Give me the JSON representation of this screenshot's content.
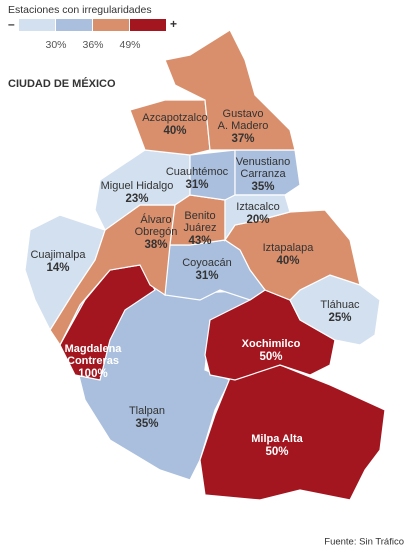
{
  "legend": {
    "title": "Estaciones con irregularidades",
    "low": "–",
    "high": "+",
    "colors": [
      "#d3e0ef",
      "#a9bfdd",
      "#d98f6c",
      "#a3161f"
    ],
    "thresholds": [
      "30%",
      "36%",
      "49%"
    ]
  },
  "title": "CIUDAD DE MÉXICO",
  "districts": [
    {
      "name_lines": [
        "Tlalpan"
      ],
      "value": "35%",
      "color": "#a9bfdd"
    },
    {
      "name_lines": [
        "Milpa Alta"
      ],
      "value": "50%",
      "color": "#a3161f"
    },
    {
      "name_lines": [
        "Xochimilco"
      ],
      "value": "50%",
      "color": "#a3161f"
    },
    {
      "name_lines": [
        "Tláhuac"
      ],
      "value": "25%",
      "color": "#d3e0ef"
    },
    {
      "name_lines": [
        "Iztapalapa"
      ],
      "value": "40%",
      "color": "#d98f6c"
    },
    {
      "name_lines": [
        "Coyoacán"
      ],
      "value": "31%",
      "color": "#a9bfdd"
    },
    {
      "name_lines": [
        "Magdalena",
        "Contreras"
      ],
      "value": "100%",
      "color": "#a3161f"
    },
    {
      "name_lines": [
        "Álvaro",
        "Obregón"
      ],
      "value": "38%",
      "color": "#d98f6c"
    },
    {
      "name_lines": [
        "Cuajimalpa"
      ],
      "value": "14%",
      "color": "#d3e0ef"
    },
    {
      "name_lines": [
        "Miguel Hidalgo"
      ],
      "value": "23%",
      "color": "#d3e0ef"
    },
    {
      "name_lines": [
        "Benito",
        "Juárez"
      ],
      "value": "43%",
      "color": "#d98f6c"
    },
    {
      "name_lines": [
        "Cuauhtémoc"
      ],
      "value": "31%",
      "color": "#a9bfdd"
    },
    {
      "name_lines": [
        "Venustiano",
        "Carranza"
      ],
      "value": "35%",
      "color": "#a9bfdd"
    },
    {
      "name_lines": [
        "Iztacalco"
      ],
      "value": "20%",
      "color": "#d3e0ef"
    },
    {
      "name_lines": [
        "Azcapotzalco"
      ],
      "value": "40%",
      "color": "#d98f6c"
    },
    {
      "name_lines": [
        "Gustavo",
        "A. Madero"
      ],
      "value": "37%",
      "color": "#d98f6c"
    }
  ],
  "source": "Fuente: Sin Tráfico"
}
